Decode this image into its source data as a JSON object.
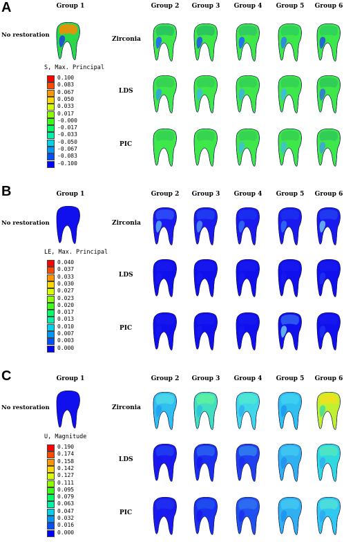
{
  "groups": [
    "Group 1",
    "Group 2",
    "Group 3",
    "Group 4",
    "Group 5",
    "Group 6"
  ],
  "materials": [
    "Zirconia",
    "LDS",
    "PIC"
  ],
  "no_restoration": "No restoration",
  "panels": [
    {
      "label": "A",
      "legend_title": "S, Max. Principal",
      "legend_values": [
        "0.100",
        "0.083",
        "0.067",
        "0.050",
        "0.033",
        "0.017",
        "-0.000",
        "-0.017",
        "-0.033",
        "-0.050",
        "-0.067",
        "-0.083",
        "-0.100"
      ],
      "legend_colors": [
        "#ff0000",
        "#ff4a00",
        "#ff9600",
        "#ffd800",
        "#d6ff00",
        "#8cff00",
        "#3cff18",
        "#00ff64",
        "#00f2a8",
        "#00d2ec",
        "#0096ff",
        "#0050ff",
        "#0000ff"
      ],
      "g1_colors": [
        "#2ad84a",
        "#ff8a00",
        "#2040e0"
      ],
      "tooth_colors": [
        [
          [
            "#3ee84a",
            "#28c060",
            "#2060ff"
          ],
          [
            "#3ee84a",
            "#28c060",
            "#2050f0"
          ],
          [
            "#3ee84a",
            "#30c860",
            "#2060ff"
          ],
          [
            "#3ee84a",
            "#2ed05a",
            "#2a80f0"
          ],
          [
            "#3ee84a",
            "#2ed05a",
            "#2050e0"
          ]
        ],
        [
          [
            "#3ee84a",
            "#34d054",
            "#30a0e0"
          ],
          [
            "#3ee84a",
            "#34d054",
            "#40b8e8"
          ],
          [
            "#3ee84a",
            "#34d054",
            "#40b0e0"
          ],
          [
            "#3ee84a",
            "#34d054",
            "#40b8e8"
          ],
          [
            "#3ee84a",
            "#30c858",
            "#3070e0"
          ]
        ],
        [
          [
            "#3ee84a",
            "#36d054",
            "#3ee84a"
          ],
          [
            "#3ee84a",
            "#36d054",
            "#3ee84a"
          ],
          [
            "#3ee84a",
            "#36d054",
            "#40c0d8"
          ],
          [
            "#3ee84a",
            "#36d054",
            "#40c0d8"
          ],
          [
            "#3ee84a",
            "#30c858",
            "#40a0e0"
          ]
        ]
      ]
    },
    {
      "label": "B",
      "legend_title": "LE, Max. Principal",
      "legend_values": [
        "0.040",
        "0.037",
        "0.033",
        "0.030",
        "0.027",
        "0.023",
        "0.020",
        "0.017",
        "0.013",
        "0.010",
        "0.007",
        "0.003",
        "0.000"
      ],
      "legend_colors": [
        "#ff0000",
        "#ff4a00",
        "#ff9600",
        "#ffd800",
        "#d6ff00",
        "#8cff00",
        "#3cff18",
        "#00ff64",
        "#00f2a8",
        "#00d2ec",
        "#0096ff",
        "#0050ff",
        "#0000ff"
      ],
      "g1_colors": [
        "#1010ee",
        "#1010ee",
        "#1010ee"
      ],
      "tooth_colors": [
        [
          [
            "#1a1af0",
            "#3050f8",
            "#5ab0f0"
          ],
          [
            "#1a1af0",
            "#2040f0",
            "#5090f0"
          ],
          [
            "#1a1af0",
            "#1a30f0",
            "#3070f0"
          ],
          [
            "#1a1af0",
            "#1a30f0",
            "#3070f0"
          ],
          [
            "#1a1af0",
            "#2040f0",
            "#70c0f0"
          ]
        ],
        [
          [
            "#1010ee",
            "#1818ee",
            "#1818ee"
          ],
          [
            "#1010ee",
            "#1818ee",
            "#1818ee"
          ],
          [
            "#1010ee",
            "#1818ee",
            "#1818ee"
          ],
          [
            "#1010ee",
            "#1818ee",
            "#1818ee"
          ],
          [
            "#1010ee",
            "#1818ee",
            "#2030f0"
          ]
        ],
        [
          [
            "#1010ee",
            "#1818ee",
            "#1818ee"
          ],
          [
            "#1010ee",
            "#1818ee",
            "#1818ee"
          ],
          [
            "#1010ee",
            "#1818ee",
            "#1818ee"
          ],
          [
            "#1010ee",
            "#3060f0",
            "#70c8f0"
          ],
          [
            "#1010ee",
            "#1818ee",
            "#2030f0"
          ]
        ]
      ]
    },
    {
      "label": "C",
      "legend_title": "U, Magnitude",
      "legend_values": [
        "0.190",
        "0.174",
        "0.158",
        "0.142",
        "0.127",
        "0.111",
        "0.095",
        "0.079",
        "0.063",
        "0.047",
        "0.032",
        "0.016",
        "0.000"
      ],
      "legend_colors": [
        "#ff0000",
        "#ff4a00",
        "#ff9600",
        "#ffd800",
        "#d6ff00",
        "#8cff00",
        "#3cff18",
        "#00ff64",
        "#00f2a8",
        "#00d2ec",
        "#0096ff",
        "#0050ff",
        "#0000ff"
      ],
      "g1_colors": [
        "#1010ee",
        "#1010ee",
        "#1010ee"
      ],
      "tooth_colors": [
        [
          [
            "#30c0f0",
            "#50d8e8",
            "#20a0f0"
          ],
          [
            "#40e0c0",
            "#60f0a0",
            "#30c0e0"
          ],
          [
            "#40d8e8",
            "#50e8d0",
            "#30b0f0"
          ],
          [
            "#30c0f0",
            "#40d0f0",
            "#2098f0"
          ],
          [
            "#c0f030",
            "#f0e020",
            "#40e0a0"
          ]
        ],
        [
          [
            "#1a1af0",
            "#2040f0",
            "#1818ee"
          ],
          [
            "#1a30f0",
            "#2a60f0",
            "#1818ee"
          ],
          [
            "#2040f0",
            "#3080f0",
            "#1a30f0"
          ],
          [
            "#30b0f0",
            "#40c8f0",
            "#2090f0"
          ],
          [
            "#30d8e0",
            "#50e8c0",
            "#30b0f0"
          ]
        ],
        [
          [
            "#1a1af0",
            "#2030f0",
            "#1818ee"
          ],
          [
            "#1a30f0",
            "#2050f0",
            "#1818ee"
          ],
          [
            "#2050f0",
            "#3070f0",
            "#1a30f0"
          ],
          [
            "#30b0f0",
            "#40c8f0",
            "#2090f0"
          ],
          [
            "#30c8f0",
            "#50e0d8",
            "#30a8f0"
          ]
        ]
      ]
    }
  ]
}
